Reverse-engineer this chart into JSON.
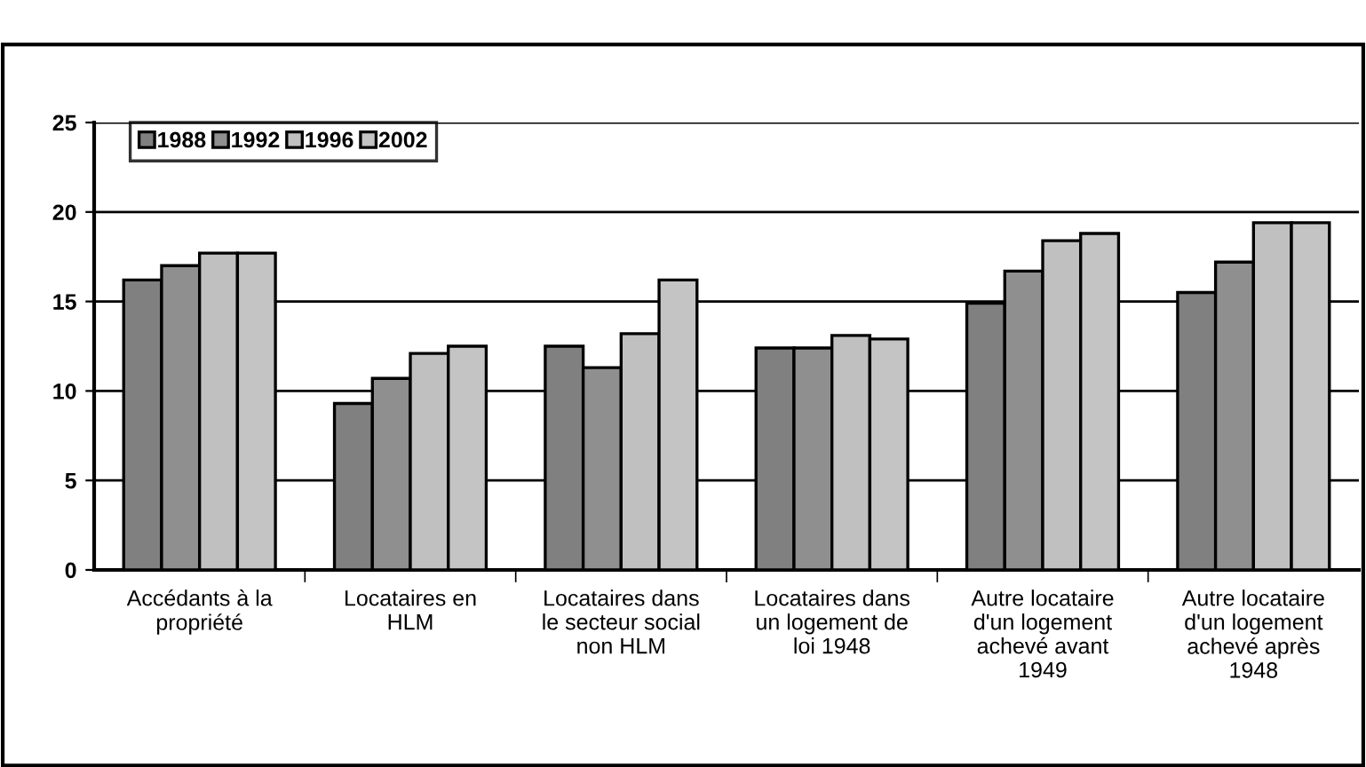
{
  "chart_data": {
    "type": "bar",
    "categories": [
      "Accédants à la\npropriété",
      "Locataires en\nHLM",
      "Locataires dans\nle secteur social\nnon HLM",
      "Locataires dans\nun logement de\nloi 1948",
      "Autre locataire\nd'un logement\nachevé avant\n1949",
      "Autre locataire\nd'un logement\nachevé après\n1948"
    ],
    "series": [
      {
        "name": "1988",
        "color": "#808080",
        "values": [
          16.2,
          9.3,
          12.5,
          12.4,
          14.9,
          15.5
        ]
      },
      {
        "name": "1992",
        "color": "#8f8f8f",
        "values": [
          17.0,
          10.7,
          11.3,
          12.4,
          16.7,
          17.2
        ]
      },
      {
        "name": "1996",
        "color": "#c0c0c0",
        "values": [
          17.7,
          12.1,
          13.2,
          13.1,
          18.4,
          19.4
        ]
      },
      {
        "name": "2002",
        "color": "#c4c4c4",
        "values": [
          17.7,
          12.5,
          16.2,
          12.9,
          18.8,
          19.4
        ]
      }
    ],
    "ylim": [
      0,
      25
    ],
    "yticks": [
      0,
      5,
      10,
      15,
      20,
      25
    ],
    "grid": "y",
    "legend": "top left"
  }
}
